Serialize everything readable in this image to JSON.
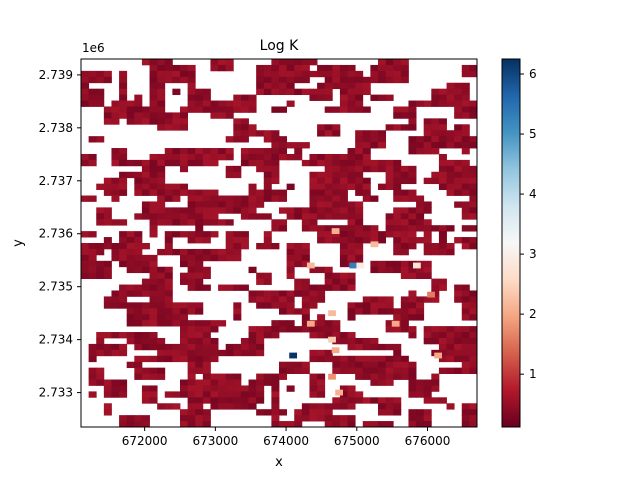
{
  "chart_data": {
    "type": "heatmap",
    "title": "Log K",
    "xlabel": "x",
    "ylabel": "y",
    "y_offset_label": "1e6",
    "xlim": [
      671100,
      676700
    ],
    "ylim": [
      2732350,
      2739300
    ],
    "x_ticks": [
      672000,
      673000,
      674000,
      675000,
      676000
    ],
    "x_tick_labels": [
      "672000",
      "673000",
      "674000",
      "675000",
      "676000"
    ],
    "y_ticks": [
      2733000,
      2734000,
      2735000,
      2736000,
      2737000,
      2738000,
      2739000
    ],
    "y_tick_labels": [
      "2.733",
      "2.734",
      "2.735",
      "2.736",
      "2.737",
      "2.738",
      "2.739"
    ],
    "colorbar": {
      "colormap": "RdBu",
      "vmin": 0.12,
      "vmax": 6.25,
      "ticks": [
        1,
        2,
        3,
        4,
        5,
        6
      ],
      "tick_labels": [
        "1",
        "2",
        "3",
        "4",
        "5",
        "6"
      ]
    },
    "grid": {
      "nx": 52,
      "ny": 62,
      "cell_size": 110,
      "background_value": 0.45,
      "coverage": 0.74,
      "blank_color": "#ffffff"
    },
    "notable_cells": [
      {
        "x": 674100,
        "y": 2733700,
        "value": 6.2
      },
      {
        "x": 674950,
        "y": 2735400,
        "value": 5.3
      },
      {
        "x": 675050,
        "y": 2735400,
        "value": 2.9
      },
      {
        "x": 674700,
        "y": 2736050,
        "value": 2.1
      },
      {
        "x": 675250,
        "y": 2735800,
        "value": 2.2
      },
      {
        "x": 675850,
        "y": 2735400,
        "value": 2.8
      },
      {
        "x": 674350,
        "y": 2735400,
        "value": 2.2
      },
      {
        "x": 674350,
        "y": 2734300,
        "value": 2.0
      },
      {
        "x": 674650,
        "y": 2734500,
        "value": 2.2
      },
      {
        "x": 674650,
        "y": 2734000,
        "value": 2.4
      },
      {
        "x": 674700,
        "y": 2733800,
        "value": 2.0
      },
      {
        "x": 674650,
        "y": 2733300,
        "value": 1.8
      },
      {
        "x": 674750,
        "y": 2733000,
        "value": 2.1
      },
      {
        "x": 675550,
        "y": 2734300,
        "value": 2.0
      },
      {
        "x": 676050,
        "y": 2734850,
        "value": 1.6
      },
      {
        "x": 676150,
        "y": 2733700,
        "value": 2.0
      }
    ]
  },
  "colors": {
    "low": "#67001f",
    "mid": "#f7f7f7",
    "high": "#053061"
  }
}
